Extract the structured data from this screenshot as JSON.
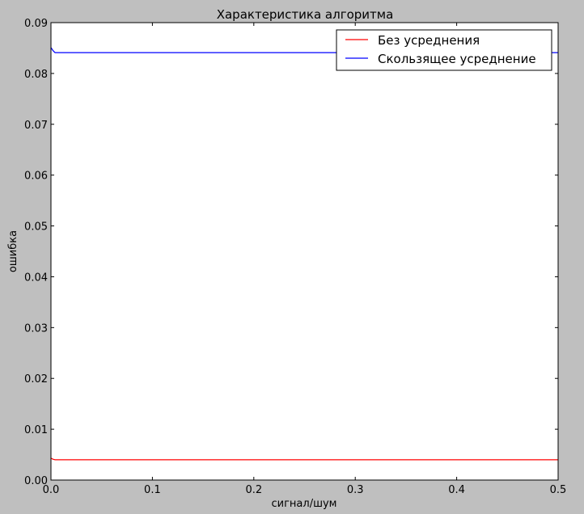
{
  "chart_data": {
    "type": "line",
    "title": "Характеристика алгоритма",
    "xlabel": "сигнал/шум",
    "ylabel": "ошибка",
    "xlim": [
      0.0,
      0.5
    ],
    "ylim": [
      0.0,
      0.09
    ],
    "x_ticks": [
      "0.0",
      "0.1",
      "0.2",
      "0.3",
      "0.4",
      "0.5"
    ],
    "y_ticks": [
      "0.00",
      "0.01",
      "0.02",
      "0.03",
      "0.04",
      "0.05",
      "0.06",
      "0.07",
      "0.08",
      "0.09"
    ],
    "grid": false,
    "legend_position": "top-right",
    "series": [
      {
        "name": "Без усреднения",
        "color": "#ff0000",
        "x": [
          0.0,
          0.002,
          0.004,
          0.1,
          0.2,
          0.3,
          0.4,
          0.5
        ],
        "y": [
          0.0043,
          0.0041,
          0.004,
          0.004,
          0.004,
          0.004,
          0.004,
          0.004
        ]
      },
      {
        "name": "Скользящее усреднение",
        "color": "#0000ff",
        "x": [
          0.0,
          0.002,
          0.004,
          0.1,
          0.2,
          0.3,
          0.4,
          0.5
        ],
        "y": [
          0.0851,
          0.0845,
          0.0841,
          0.0841,
          0.0841,
          0.0841,
          0.0841,
          0.0841
        ]
      }
    ]
  }
}
